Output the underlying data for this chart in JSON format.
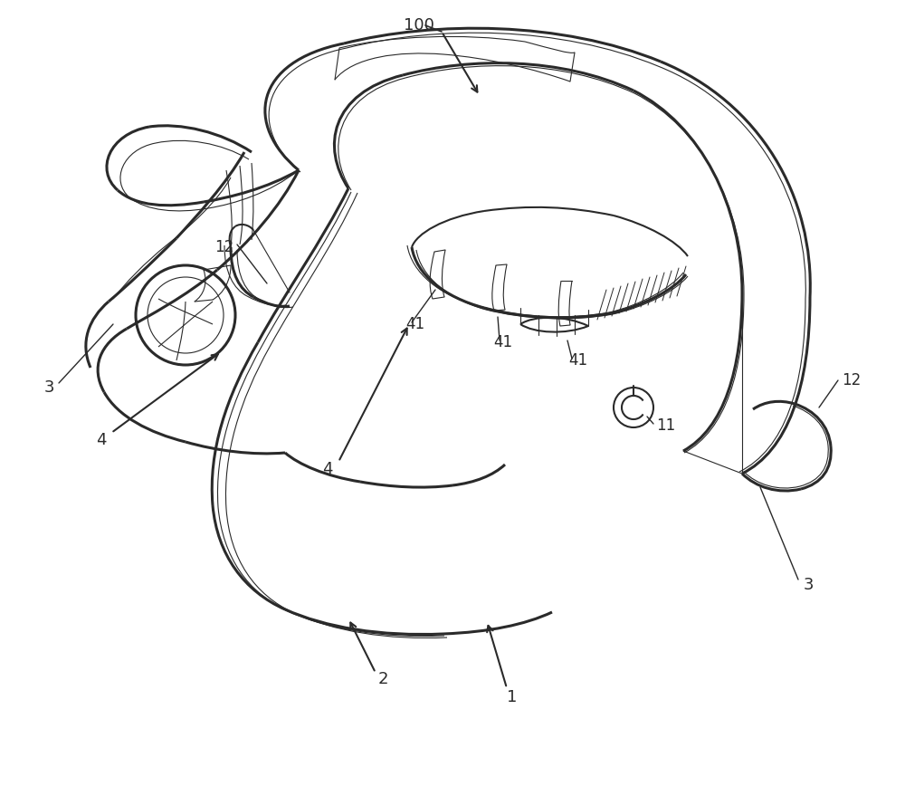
{
  "bg_color": "#ffffff",
  "line_color": "#2a2a2a",
  "lw_heavy": 2.2,
  "lw_med": 1.5,
  "lw_thin": 0.8,
  "fig_width": 10.0,
  "fig_height": 8.68,
  "dpi": 100,
  "font_size": 13
}
